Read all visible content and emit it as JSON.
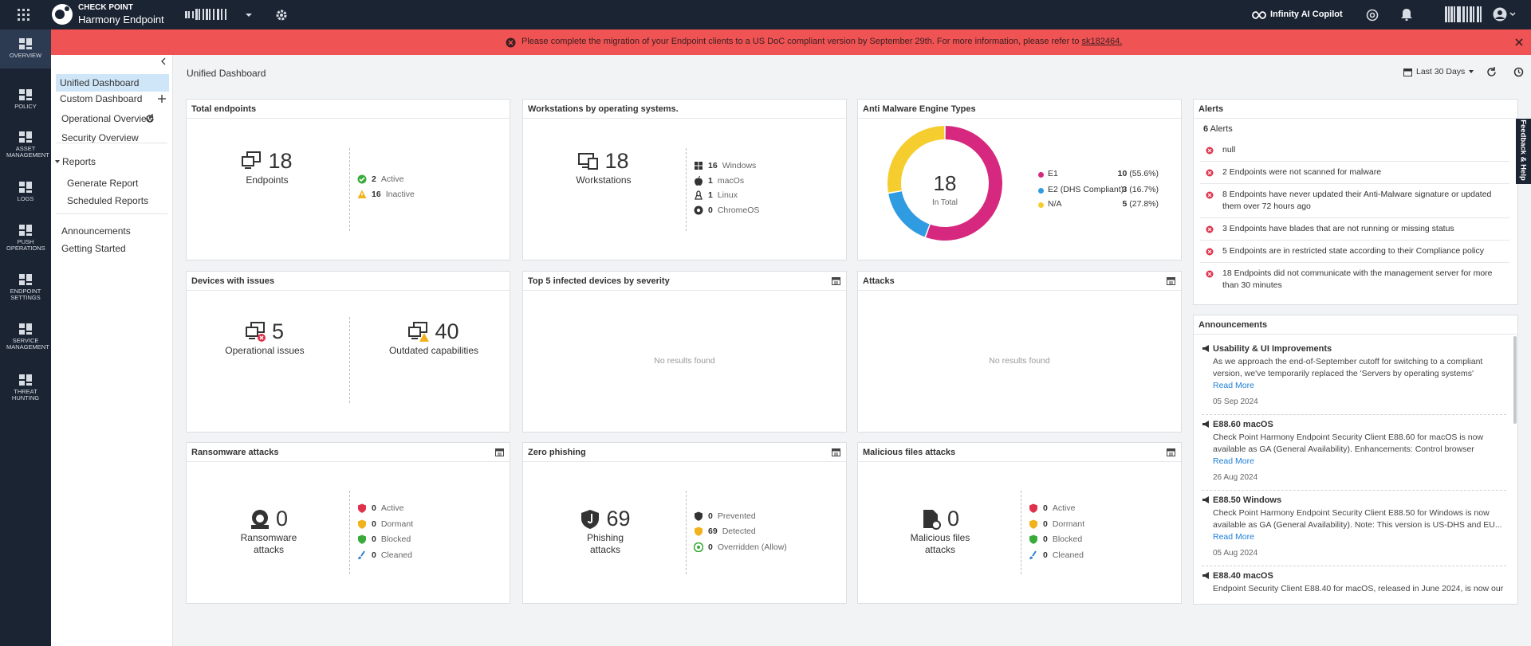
{
  "header": {
    "brand": "CHECK POINT",
    "product": "Harmony Endpoint",
    "copilot": "Infinity AI Copilot"
  },
  "banner": {
    "text": "Please complete the migration of your Endpoint clients to a US DoC compliant version by September 29th. For more information, please refer to",
    "link": "sk182464."
  },
  "sidebar": [
    "OVERVIEW",
    "POLICY",
    "ASSET MANAGEMENT",
    "LOGS",
    "PUSH OPERATIONS",
    "ENDPOINT SETTINGS",
    "SERVICE MANAGEMENT",
    "THREAT HUNTING"
  ],
  "nav": {
    "items": [
      "Unified Dashboard",
      "Custom Dashboard",
      "Operational Overview",
      "Security Overview"
    ],
    "reports": "Reports",
    "report_items": [
      "Generate Report",
      "Scheduled Reports"
    ],
    "extra": [
      "Announcements",
      "Getting Started"
    ]
  },
  "toolbar": {
    "title": "Unified Dashboard",
    "range": "Last 30 Days"
  },
  "total_endpoints": {
    "title": "Total endpoints",
    "count": 18,
    "label": "Endpoints",
    "breakdown": [
      {
        "count": 2,
        "label": "Active"
      },
      {
        "count": 16,
        "label": "Inactive"
      }
    ]
  },
  "workstations": {
    "title": "Workstations by operating systems.",
    "count": 18,
    "label": "Workstations",
    "breakdown": [
      {
        "count": 16,
        "label": "Windows"
      },
      {
        "count": 1,
        "label": "macOs"
      },
      {
        "count": 1,
        "label": "Linux"
      },
      {
        "count": 0,
        "label": "ChromeOS"
      }
    ]
  },
  "anti_malware": {
    "title": "Anti Malware Engine Types",
    "type": "pie",
    "total": 18,
    "total_label": "In Total",
    "categories": [
      "E1",
      "E2 (DHS Compliant)",
      "N/A"
    ],
    "values": [
      10,
      3,
      5
    ],
    "shares": [
      "(55.6%)",
      "(16.7%)",
      "(27.8%)"
    ],
    "colors": [
      "#d6287e",
      "#2f9be0",
      "#f5cd2e"
    ]
  },
  "devices_with_issues": {
    "title": "Devices with issues",
    "items": [
      {
        "count": 5,
        "label": "Operational issues"
      },
      {
        "count": 40,
        "label": "Outdated capabilities"
      }
    ]
  },
  "top_infected": {
    "title": "Top 5 infected devices by severity",
    "empty": "No results found"
  },
  "attacks": {
    "title": "Attacks",
    "empty": "No results found"
  },
  "ransomware": {
    "title": "Ransomware attacks",
    "count": 0,
    "label": "Ransomware attacks",
    "breakdown": [
      {
        "count": 0,
        "label": "Active"
      },
      {
        "count": 0,
        "label": "Dormant"
      },
      {
        "count": 0,
        "label": "Blocked"
      },
      {
        "count": 0,
        "label": "Cleaned"
      }
    ]
  },
  "zero_phishing": {
    "title": "Zero phishing",
    "count": 69,
    "label": "Phishing attacks",
    "breakdown": [
      {
        "count": 0,
        "label": "Prevented"
      },
      {
        "count": 69,
        "label": "Detected"
      },
      {
        "count": 0,
        "label": "Overridden (Allow)"
      }
    ]
  },
  "malicious_files": {
    "title": "Malicious files attacks",
    "count": 0,
    "label": "Malicious files attacks",
    "breakdown": [
      {
        "count": 0,
        "label": "Active"
      },
      {
        "count": 0,
        "label": "Dormant"
      },
      {
        "count": 0,
        "label": "Blocked"
      },
      {
        "count": 0,
        "label": "Cleaned"
      }
    ]
  },
  "alerts": {
    "title": "Alerts",
    "count": 6,
    "label": "Alerts",
    "items": [
      "null",
      "2 Endpoints were not scanned for malware",
      "8 Endpoints have never updated their Anti-Malware signature or updated them over 72 hours ago",
      "3 Endpoints have blades that are not running or missing status",
      "5 Endpoints are in restricted state according to their Compliance policy",
      "18 Endpoints did not communicate with the management server for more than 30 minutes"
    ]
  },
  "announcements": {
    "title": "Announcements",
    "items": [
      {
        "title": "Usability & UI Improvements",
        "body": "As we approach the end-of-September cutoff for switching to a compliant version, we've temporarily replaced the 'Servers by operating systems' widget...",
        "link": "Read More",
        "date": "05 Sep 2024"
      },
      {
        "title": "E88.60 macOS",
        "body": "Check Point Harmony Endpoint Security Client E88.60 for macOS is now available as GA (General Availability). Enhancements: Control browser Incognit...",
        "link": "Read More",
        "date": "26 Aug 2024"
      },
      {
        "title": "E88.50 Windows",
        "body": "Check Point Harmony Endpoint Security Client E88.50 for Windows is now available as GA (General Availability). Note: This version is US-DHS and EU...",
        "link": "Read More",
        "date": "05 Aug 2024"
      },
      {
        "title": "E88.40 macOS",
        "body": "Endpoint Security Client E88.40 for macOS, released in June 2024, is now our"
      }
    ]
  },
  "feedback": "Feedback & Help"
}
